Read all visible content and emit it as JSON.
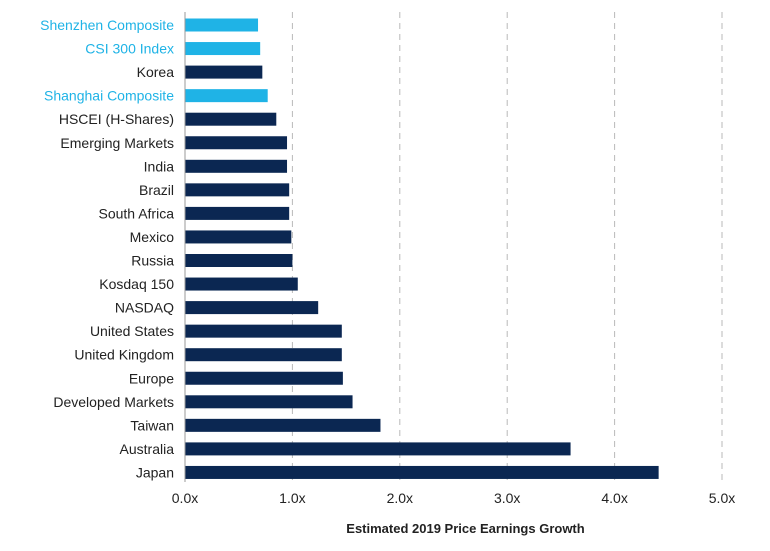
{
  "chart_data": {
    "type": "bar",
    "orientation": "horizontal",
    "title": "",
    "xlabel": "Estimated 2019 Price Earnings Growth",
    "ylabel": "",
    "xlim": [
      0,
      5
    ],
    "xticks": [
      0,
      1,
      2,
      3,
      4,
      5
    ],
    "xtick_labels": [
      "0.0x",
      "1.0x",
      "2.0x",
      "3.0x",
      "4.0x",
      "5.0x"
    ],
    "grid": "vertical dashed",
    "categories": [
      "Shenzhen Composite",
      "CSI 300 Index",
      "Korea",
      "Shanghai Composite",
      "HSCEI (H-Shares)",
      "Emerging Markets",
      "India",
      "Brazil",
      "South Africa",
      "Mexico",
      "Russia",
      "Kosdaq 150",
      "NASDAQ",
      "United States",
      "United Kingdom",
      "Europe",
      "Developed Markets",
      "Taiwan",
      "Australia",
      "Japan"
    ],
    "values": [
      0.68,
      0.7,
      0.72,
      0.77,
      0.85,
      0.95,
      0.95,
      0.97,
      0.97,
      0.99,
      1.0,
      1.05,
      1.24,
      1.46,
      1.46,
      1.47,
      1.56,
      1.82,
      3.59,
      4.41
    ],
    "highlighted": [
      "Shenzhen Composite",
      "CSI 300 Index",
      "Shanghai Composite"
    ],
    "colors": {
      "highlight": "#1fb3e6",
      "default_bar": "#0b2752",
      "default_label": "#222222",
      "grid": "#b9b9b9",
      "axis": "#999999"
    }
  }
}
